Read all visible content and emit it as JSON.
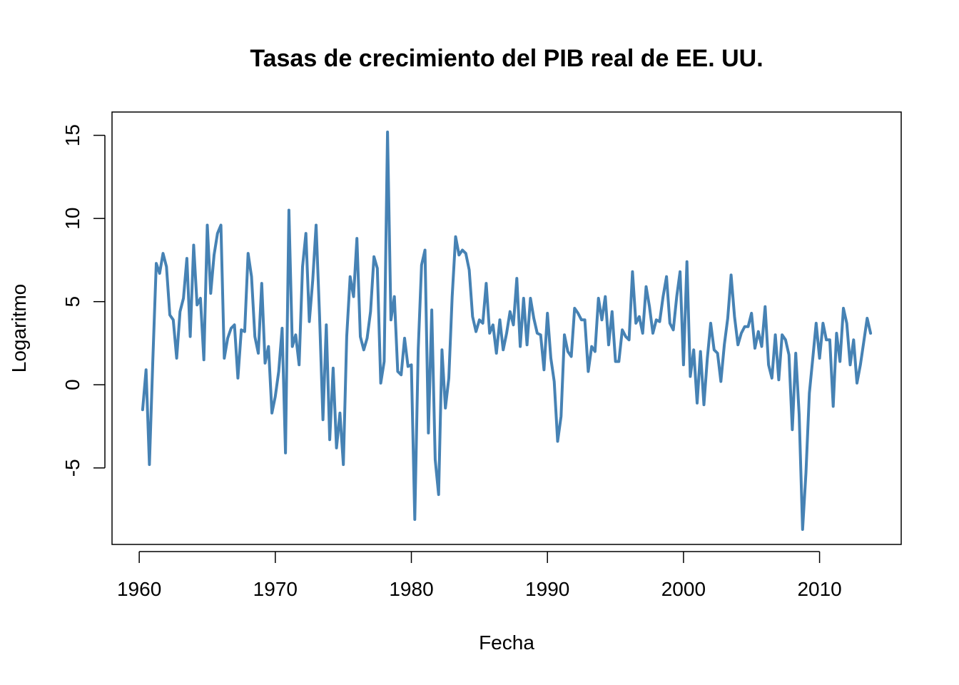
{
  "chart_data": {
    "type": "line",
    "title": "Tasas de crecimiento del PIB real de EE. UU.",
    "xlabel": "Fecha",
    "ylabel": "Logaritmo",
    "xlim": [
      1958,
      2016
    ],
    "ylim": [
      -9.6,
      16.4
    ],
    "x_ticks": [
      "1960",
      "1970",
      "1980",
      "1990",
      "2000",
      "2010"
    ],
    "y_ticks": [
      "-5",
      "0",
      "5",
      "10",
      "15"
    ],
    "grid": false,
    "legend": "none",
    "series": [
      {
        "color": "#4682B4",
        "x_start": 1960.25,
        "x_step": 0.25,
        "values": [
          -1.5,
          0.9,
          -4.8,
          1.5,
          7.3,
          6.7,
          7.9,
          7.1,
          4.2,
          3.9,
          1.6,
          4.4,
          5.2,
          7.6,
          2.9,
          8.4,
          4.8,
          5.2,
          1.5,
          9.6,
          5.5,
          7.8,
          9.1,
          9.6,
          1.6,
          2.8,
          3.4,
          3.6,
          0.4,
          3.3,
          3.2,
          7.9,
          6.5,
          2.9,
          1.9,
          6.1,
          1.3,
          2.3,
          -1.7,
          -0.7,
          0.8,
          3.4,
          -4.1,
          10.5,
          2.3,
          3.0,
          1.2,
          7.1,
          9.1,
          3.8,
          6.3,
          9.6,
          4.2,
          -2.1,
          3.6,
          -3.3,
          1.0,
          -3.8,
          -1.7,
          -4.8,
          2.9,
          6.5,
          5.3,
          8.8,
          2.9,
          2.1,
          2.8,
          4.4,
          7.7,
          7.0,
          0.1,
          1.4,
          15.2,
          3.9,
          5.3,
          0.8,
          0.6,
          2.8,
          1.1,
          1.2,
          -8.1,
          2.1,
          7.2,
          8.1,
          -2.9,
          4.5,
          -4.5,
          -6.6,
          2.1,
          -1.4,
          0.4,
          5.3,
          8.9,
          7.8,
          8.1,
          7.9,
          6.9,
          4.1,
          3.2,
          3.9,
          3.7,
          6.1,
          3.1,
          3.6,
          1.9,
          3.9,
          2.1,
          3.1,
          4.4,
          3.6,
          6.4,
          2.3,
          5.2,
          2.4,
          5.2,
          4.0,
          3.1,
          3.0,
          0.9,
          4.3,
          1.6,
          0.2,
          -3.4,
          -1.9,
          3.0,
          2.0,
          1.7,
          4.6,
          4.3,
          3.9,
          3.9,
          0.8,
          2.3,
          2.0,
          5.2,
          3.9,
          5.3,
          2.4,
          4.4,
          1.4,
          1.4,
          3.3,
          2.9,
          2.7,
          6.8,
          3.7,
          4.1,
          3.1,
          5.9,
          4.7,
          3.1,
          3.9,
          3.8,
          5.3,
          6.5,
          3.7,
          3.3,
          5.3,
          6.8,
          1.2,
          7.4,
          0.5,
          2.1,
          -1.1,
          2.0,
          -1.2,
          1.6,
          3.7,
          2.1,
          1.9,
          0.2,
          2.4,
          4.0,
          6.6,
          4.1,
          2.4,
          3.1,
          3.5,
          3.5,
          4.3,
          2.2,
          3.2,
          2.3,
          4.7,
          1.2,
          0.4,
          3.0,
          0.3,
          3.0,
          2.7,
          1.8,
          -2.7,
          1.9,
          -1.8,
          -8.7,
          -5.3,
          -0.5,
          1.6,
          3.7,
          1.6,
          3.7,
          2.7,
          2.7,
          -1.3,
          3.1,
          1.4,
          4.6,
          3.7,
          1.2,
          2.7,
          0.1,
          1.2,
          2.6,
          4.0,
          3.1
        ]
      }
    ]
  }
}
